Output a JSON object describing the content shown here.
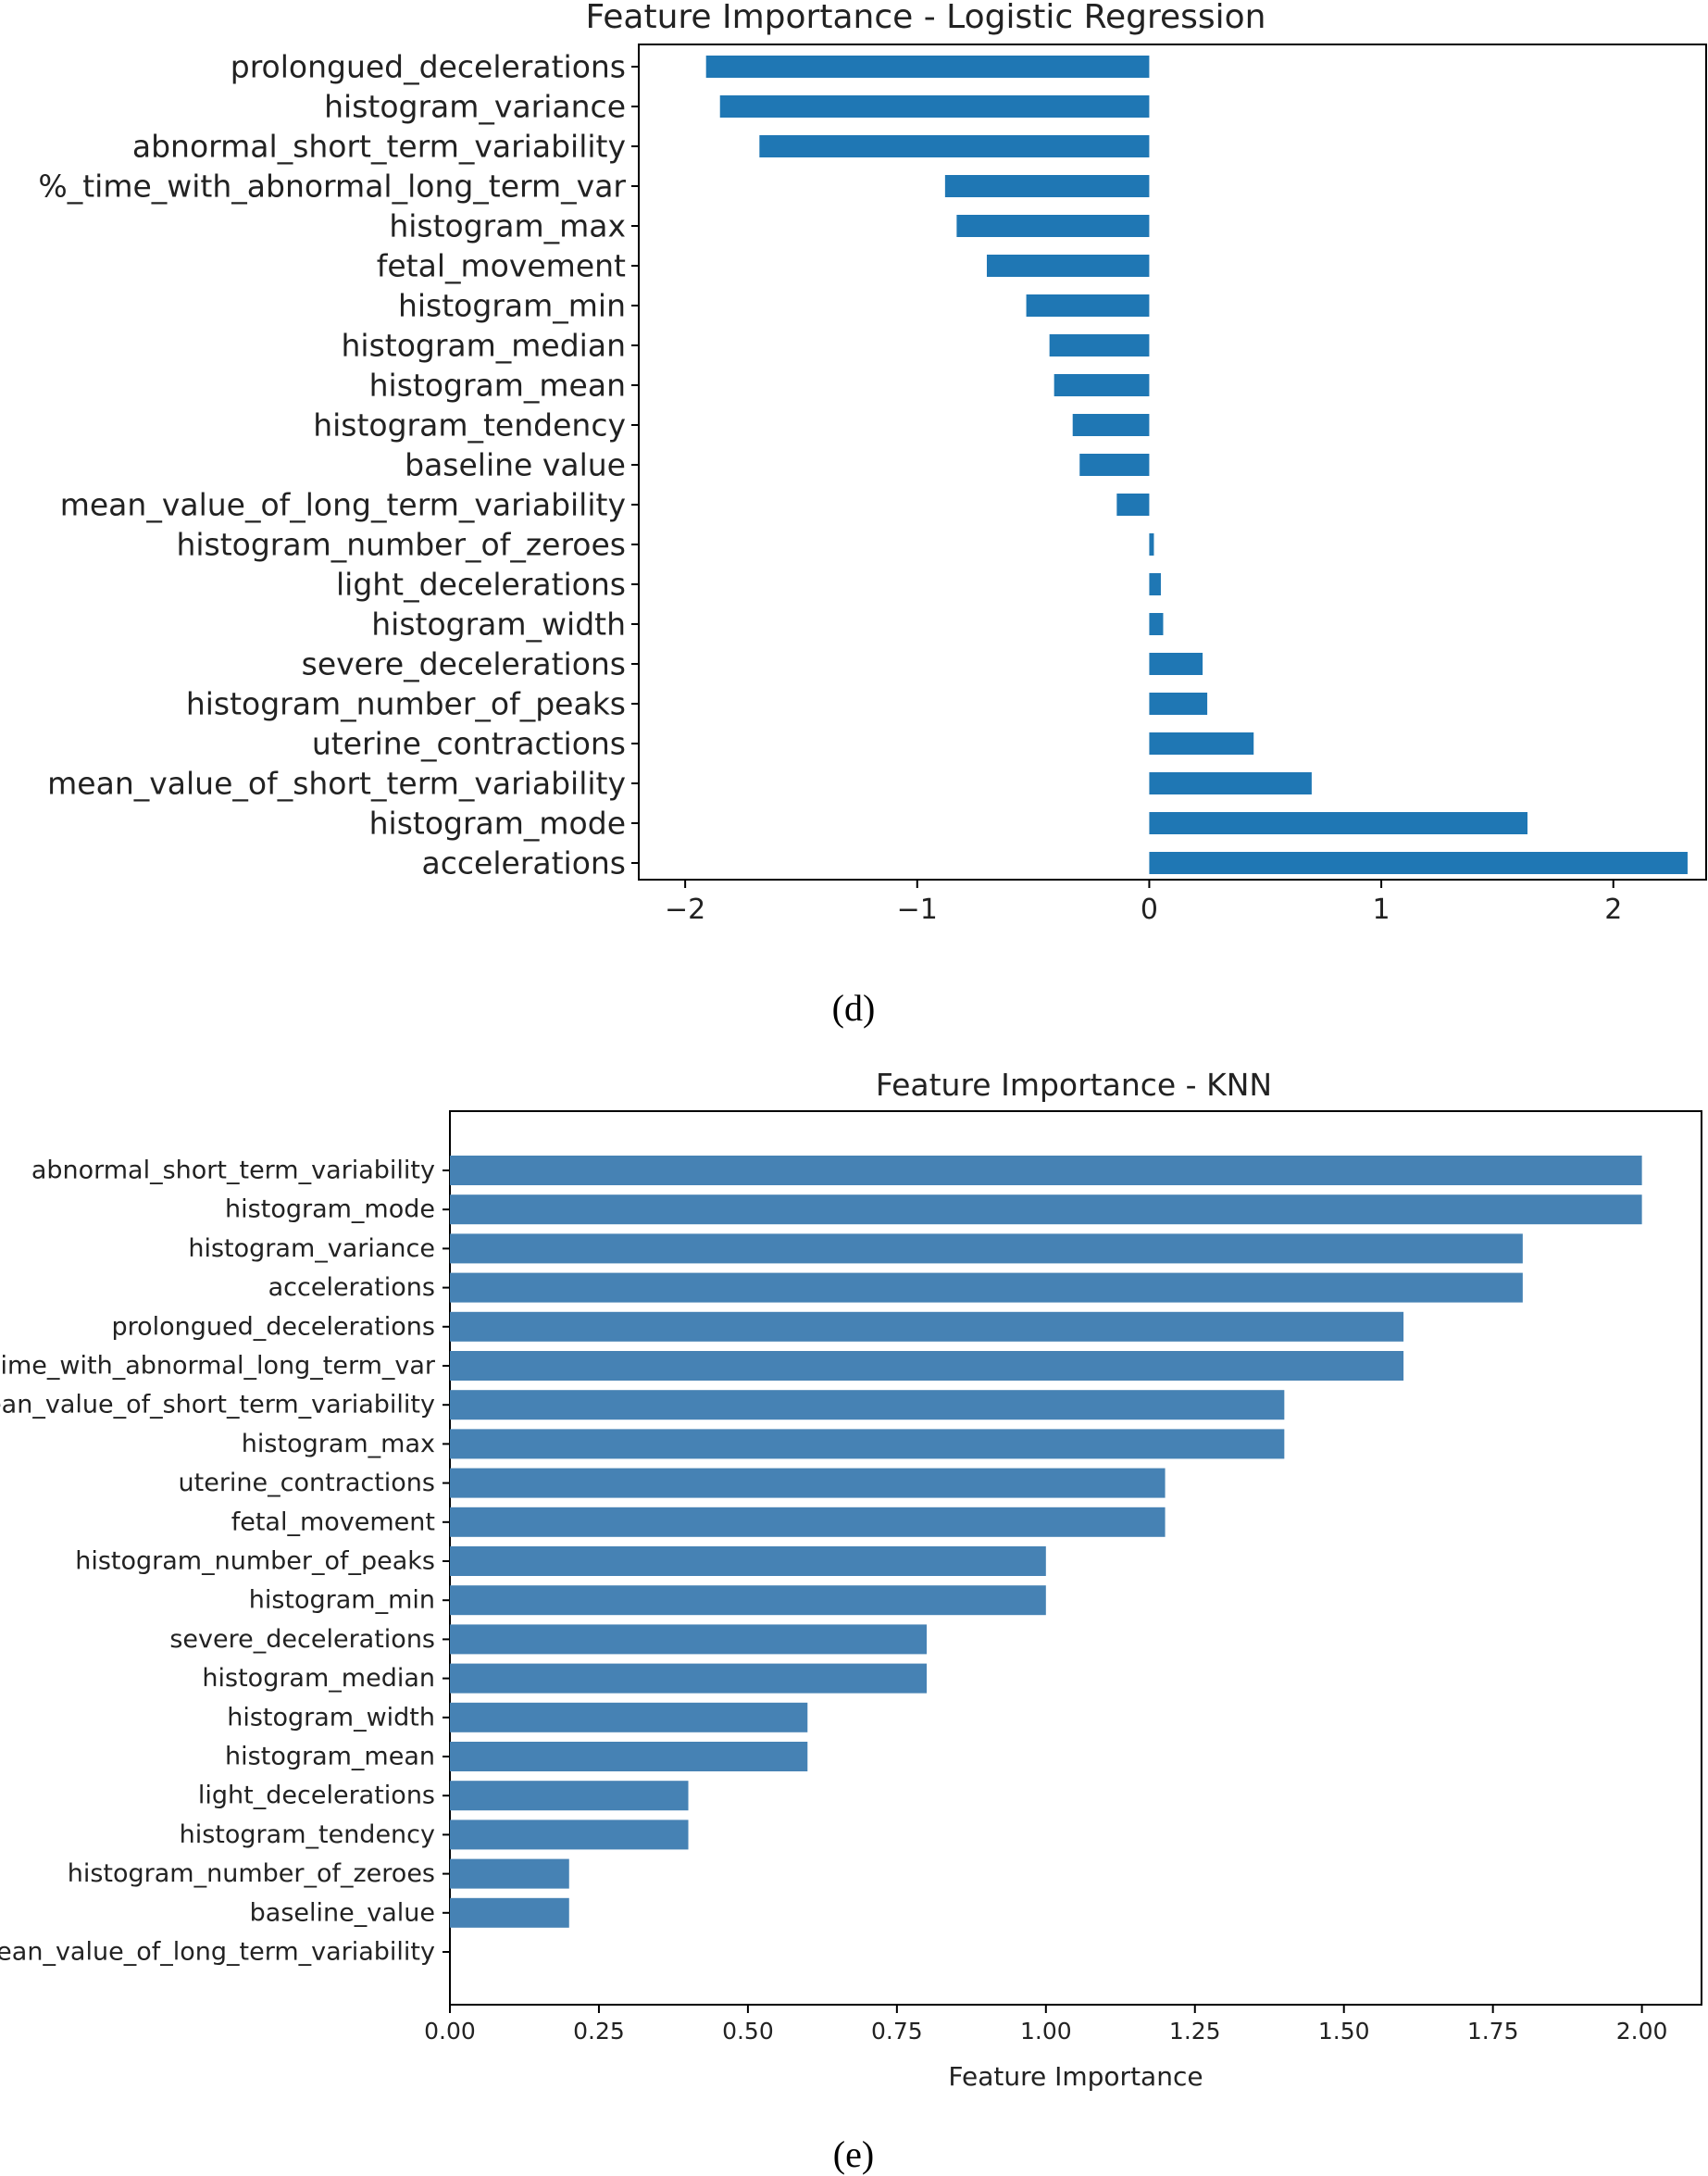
{
  "captions": {
    "d": "(d)",
    "e": "(e)"
  },
  "colors": {
    "lr_bar": "#1f77b4",
    "knn_bar": "#4682b4",
    "axis": "#000000",
    "text": "#222222"
  },
  "chart_data": [
    {
      "id": "lr",
      "type": "bar",
      "orientation": "horizontal",
      "title": "Feature Importance - Logistic Regression",
      "xlabel": "",
      "ylabel": "",
      "xlim": [
        -2.2,
        2.4
      ],
      "xticks": [
        -2,
        -1,
        0,
        1,
        2
      ],
      "xtick_labels": [
        "−2",
        "−1",
        "0",
        "1",
        "2"
      ],
      "grid": false,
      "categories": [
        "prolongued_decelerations",
        "histogram_variance",
        "abnormal_short_term_variability",
        "%_time_with_abnormal_long_term_var",
        "histogram_max",
        "fetal_movement",
        "histogram_min",
        "histogram_median",
        "histogram_mean",
        "histogram_tendency",
        "baseline value",
        "mean_value_of_long_term_variability",
        "histogram_number_of_zeroes",
        "light_decelerations",
        "histogram_width",
        "severe_decelerations",
        "histogram_number_of_peaks",
        "uterine_contractions",
        "mean_value_of_short_term_variability",
        "histogram_mode",
        "accelerations"
      ],
      "values": [
        -1.91,
        -1.85,
        -1.68,
        -0.88,
        -0.83,
        -0.7,
        -0.53,
        -0.43,
        -0.41,
        -0.33,
        -0.3,
        -0.14,
        0.02,
        0.05,
        0.06,
        0.23,
        0.25,
        0.45,
        0.7,
        1.63,
        2.32
      ]
    },
    {
      "id": "knn",
      "type": "bar",
      "orientation": "horizontal",
      "title": "Feature Importance - KNN",
      "xlabel": "Feature Importance",
      "ylabel": "",
      "xlim": [
        0,
        2.1
      ],
      "xticks": [
        0,
        0.25,
        0.5,
        0.75,
        1.0,
        1.25,
        1.5,
        1.75,
        2.0
      ],
      "xtick_labels": [
        "0.00",
        "0.25",
        "0.50",
        "0.75",
        "1.00",
        "1.25",
        "1.50",
        "1.75",
        "2.00"
      ],
      "grid": false,
      "categories": [
        "abnormal_short_term_variability",
        "histogram_mode",
        "histogram_variance",
        "accelerations",
        "prolongued_decelerations",
        "%_time_with_abnormal_long_term_var",
        "mean_value_of_short_term_variability",
        "histogram_max",
        "uterine_contractions",
        "fetal_movement",
        "histogram_number_of_peaks",
        "histogram_min",
        "severe_decelerations",
        "histogram_median",
        "histogram_width",
        "histogram_mean",
        "light_decelerations",
        "histogram_tendency",
        "histogram_number_of_zeroes",
        "baseline_value",
        "mean_value_of_long_term_variability"
      ],
      "values": [
        2.0,
        2.0,
        1.8,
        1.8,
        1.6,
        1.6,
        1.4,
        1.4,
        1.2,
        1.2,
        1.0,
        1.0,
        0.8,
        0.8,
        0.6,
        0.6,
        0.4,
        0.4,
        0.2,
        0.2,
        0.0
      ]
    }
  ]
}
